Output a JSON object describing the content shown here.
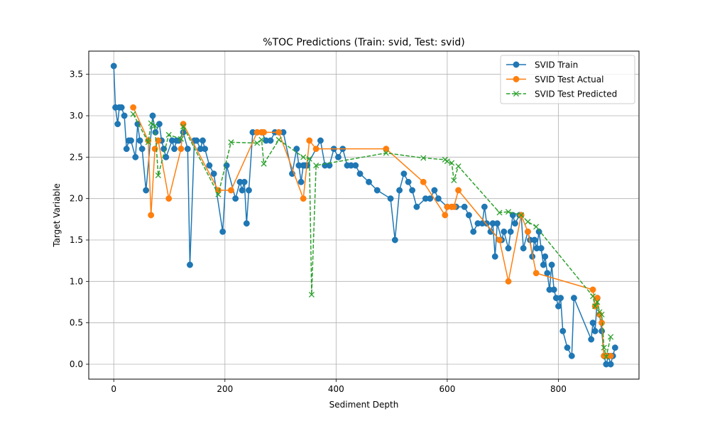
{
  "chart_data": {
    "type": "line",
    "title": "%TOC Predictions (Train: svid, Test: svid)",
    "xlabel": "Sediment Depth",
    "ylabel": "Target Variable",
    "xlim": [
      -45,
      945
    ],
    "ylim": [
      -0.18,
      3.78
    ],
    "xticks": [
      0,
      200,
      400,
      600,
      800
    ],
    "yticks": [
      0.0,
      0.5,
      1.0,
      1.5,
      2.0,
      2.5,
      3.0,
      3.5
    ],
    "grid": true,
    "legend_position": "top-right",
    "series": [
      {
        "name": "SVID Train",
        "color": "#1f77b4",
        "style": "solid",
        "marker": "circle",
        "x": [
          0,
          3,
          7,
          10,
          14,
          19,
          23,
          27,
          31,
          39,
          43,
          47,
          51,
          58,
          70,
          75,
          82,
          86,
          90,
          94,
          105,
          109,
          113,
          117,
          125,
          133,
          137,
          145,
          149,
          156,
          160,
          164,
          172,
          180,
          196,
          203,
          219,
          227,
          231,
          235,
          239,
          243,
          250,
          258,
          266,
          274,
          282,
          290,
          297,
          305,
          321,
          329,
          333,
          337,
          341,
          344,
          348,
          372,
          380,
          388,
          396,
          404,
          412,
          420,
          427,
          435,
          443,
          459,
          474,
          498,
          506,
          514,
          522,
          530,
          537,
          545,
          561,
          569,
          577,
          584,
          600,
          608,
          616,
          631,
          639,
          647,
          655,
          663,
          667,
          671,
          678,
          682,
          686,
          690,
          698,
          702,
          710,
          714,
          718,
          722,
          730,
          733,
          737,
          745,
          749,
          753,
          757,
          761,
          765,
          769,
          773,
          776,
          780,
          784,
          788,
          792,
          796,
          800,
          804,
          808,
          816,
          824,
          828,
          859,
          862,
          866,
          870,
          874,
          878,
          882,
          886,
          890,
          894,
          898,
          902
        ],
        "values": [
          3.6,
          3.1,
          2.9,
          3.1,
          3.1,
          3.0,
          2.6,
          2.7,
          2.7,
          2.5,
          2.9,
          2.7,
          2.6,
          2.1,
          3.0,
          2.8,
          2.9,
          2.7,
          2.6,
          2.5,
          2.7,
          2.6,
          2.7,
          2.7,
          2.8,
          2.6,
          1.2,
          2.7,
          2.7,
          2.6,
          2.7,
          2.6,
          2.4,
          2.3,
          1.6,
          2.4,
          2.0,
          2.2,
          2.1,
          2.2,
          1.7,
          2.1,
          2.8,
          2.8,
          2.8,
          2.7,
          2.7,
          2.8,
          2.8,
          2.8,
          2.3,
          2.6,
          2.4,
          2.2,
          2.4,
          2.4,
          2.4,
          2.7,
          2.4,
          2.4,
          2.6,
          2.5,
          2.6,
          2.4,
          2.4,
          2.4,
          2.3,
          2.2,
          2.1,
          2.0,
          1.5,
          2.1,
          2.3,
          2.2,
          2.1,
          1.9,
          2.0,
          2.0,
          2.1,
          2.0,
          1.9,
          1.9,
          1.9,
          1.9,
          1.8,
          1.6,
          1.7,
          1.7,
          1.9,
          1.7,
          1.6,
          1.7,
          1.3,
          1.7,
          1.5,
          1.6,
          1.4,
          1.6,
          1.8,
          1.7,
          1.8,
          1.8,
          1.4,
          1.6,
          1.5,
          1.3,
          1.5,
          1.4,
          1.6,
          1.4,
          1.2,
          1.3,
          1.1,
          0.9,
          1.2,
          0.9,
          0.8,
          0.7,
          0.8,
          0.4,
          0.2,
          0.1,
          0.8,
          0.3,
          0.5,
          0.4,
          0.8,
          0.6,
          0.4,
          0.1,
          0.0,
          0.1,
          0.0,
          0.1,
          0.2
        ]
      },
      {
        "name": "SVID Test Actual",
        "color": "#ff7f0e",
        "style": "solid",
        "marker": "circle",
        "x": [
          35,
          62,
          67,
          74,
          80,
          99,
          121,
          125,
          188,
          211,
          258,
          266,
          270,
          297,
          341,
          352,
          364,
          490,
          557,
          596,
          600,
          608,
          612,
          620,
          694,
          710,
          733,
          745,
          760,
          862,
          866,
          870,
          874,
          878,
          882,
          886,
          894
        ],
        "values": [
          3.1,
          2.7,
          1.8,
          2.6,
          2.7,
          2.0,
          2.6,
          2.9,
          2.1,
          2.1,
          2.8,
          2.8,
          2.8,
          2.8,
          2.0,
          2.7,
          2.6,
          2.6,
          2.2,
          1.8,
          1.9,
          1.9,
          1.9,
          2.1,
          1.5,
          1.0,
          1.8,
          1.6,
          1.1,
          0.9,
          0.7,
          0.8,
          0.6,
          0.5,
          0.1,
          0.1,
          0.1
        ]
      },
      {
        "name": "SVID Test Predicted",
        "color": "#2ca02c",
        "style": "dashed",
        "marker": "x",
        "x": [
          35,
          62,
          67,
          74,
          80,
          99,
          121,
          125,
          188,
          211,
          258,
          266,
          270,
          297,
          341,
          352,
          356,
          364,
          490,
          557,
          596,
          600,
          608,
          612,
          620,
          694,
          710,
          733,
          745,
          760,
          862,
          866,
          870,
          874,
          878,
          882,
          886,
          894
        ],
        "values": [
          3.02,
          2.68,
          2.91,
          2.88,
          2.28,
          2.77,
          2.72,
          2.87,
          2.05,
          2.68,
          2.67,
          2.71,
          2.42,
          2.71,
          2.5,
          2.48,
          0.84,
          2.4,
          2.55,
          2.49,
          2.47,
          2.45,
          2.43,
          2.22,
          2.39,
          1.83,
          1.84,
          1.8,
          1.72,
          1.66,
          0.82,
          0.7,
          0.75,
          0.63,
          0.6,
          0.2,
          0.09,
          0.33
        ]
      }
    ]
  }
}
